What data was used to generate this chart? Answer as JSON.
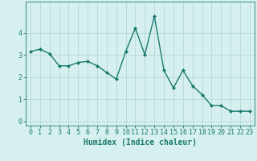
{
  "x": [
    0,
    1,
    2,
    3,
    4,
    5,
    6,
    7,
    8,
    9,
    10,
    11,
    12,
    13,
    14,
    15,
    16,
    17,
    18,
    19,
    20,
    21,
    22,
    23
  ],
  "y": [
    3.15,
    3.25,
    3.05,
    2.5,
    2.5,
    2.65,
    2.7,
    2.5,
    2.2,
    1.9,
    3.15,
    4.2,
    3.0,
    4.75,
    2.3,
    1.5,
    2.3,
    1.6,
    1.2,
    0.7,
    0.7,
    0.45,
    0.45,
    0.45
  ],
  "line_color": "#1a7a6e",
  "marker": "D",
  "marker_size": 2,
  "bg_color": "#d6f0ef",
  "grid_color": "#b8d8d5",
  "axis_color": "#1a7a6e",
  "xlabel": "Humidex (Indice chaleur)",
  "xlabel_fontsize": 7,
  "tick_fontsize": 6,
  "ylim": [
    -0.2,
    5.4
  ],
  "xlim": [
    -0.5,
    23.5
  ],
  "yticks": [
    0,
    1,
    2,
    3,
    4
  ],
  "xticks": [
    0,
    1,
    2,
    3,
    4,
    5,
    6,
    7,
    8,
    9,
    10,
    11,
    12,
    13,
    14,
    15,
    16,
    17,
    18,
    19,
    20,
    21,
    22,
    23
  ]
}
